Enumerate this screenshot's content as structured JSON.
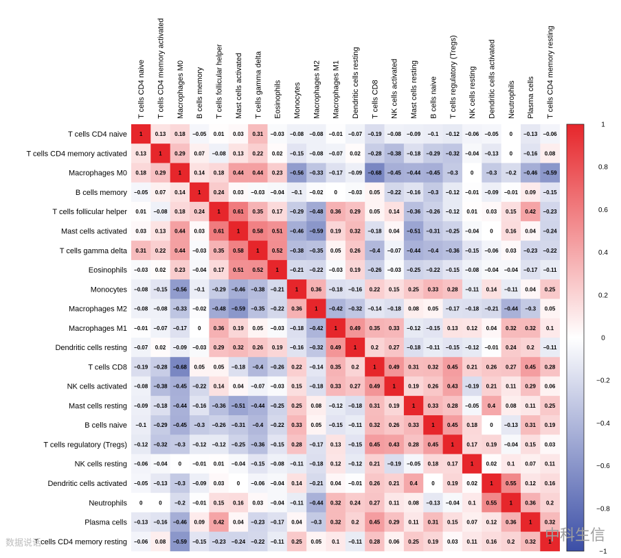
{
  "chart_data": {
    "type": "heatmap",
    "title": "",
    "row_labels": [
      "T cells CD4 naive",
      "T cells CD4 memory activated",
      "Macrophages M0",
      "B cells memory",
      "T cells follicular helper",
      "Mast cells activated",
      "T cells gamma delta",
      "Eosinophils",
      "Monocytes",
      "Macrophages M2",
      "Macrophages M1",
      "Dendritic cells resting",
      "T cells CD8",
      "NK cells activated",
      "Mast cells resting",
      "B cells naive",
      "T cells regulatory (Tregs)",
      "NK cells resting",
      "Dendritic cells activated",
      "Neutrophils",
      "Plasma cells",
      "T cells CD4 memory resting"
    ],
    "column_labels": [
      "T cells CD4 naive",
      "T cells CD4 memory activated",
      "Macrophages M0",
      "B cells memory",
      "T cells follicular helper",
      "Mast cells activated",
      "T cells gamma delta",
      "Eosinophils",
      "Monocytes",
      "Macrophages M2",
      "Macrophages M1",
      "Dendritic cells resting",
      "T cells CD8",
      "NK cells activated",
      "Mast cells resting",
      "B cells naive",
      "T cells regulatory (Tregs)",
      "NK cells resting",
      "Dendritic cells activated",
      "Neutrophils",
      "Plasma cells",
      "T cells CD4 memory resting"
    ],
    "values": [
      [
        1,
        0.13,
        0.18,
        -0.05,
        0.01,
        0.03,
        0.31,
        -0.03,
        -0.08,
        -0.08,
        -0.01,
        -0.07,
        -0.19,
        -0.08,
        -0.09,
        -0.1,
        -0.12,
        -0.06,
        -0.05,
        0,
        -0.13,
        -0.06
      ],
      [
        0.13,
        1,
        0.29,
        0.07,
        -0.08,
        0.13,
        0.22,
        0.02,
        -0.15,
        -0.08,
        -0.07,
        0.02,
        -0.28,
        -0.38,
        -0.18,
        -0.29,
        -0.32,
        -0.04,
        -0.13,
        0,
        -0.16,
        0.08
      ],
      [
        0.18,
        0.29,
        1,
        0.14,
        0.18,
        0.44,
        0.44,
        0.23,
        -0.56,
        -0.33,
        -0.17,
        -0.09,
        -0.68,
        -0.45,
        -0.44,
        -0.45,
        -0.3,
        0,
        -0.3,
        -0.2,
        -0.46,
        -0.59
      ],
      [
        -0.05,
        0.07,
        0.14,
        1,
        0.24,
        0.03,
        -0.03,
        -0.04,
        -0.1,
        -0.02,
        0,
        -0.03,
        0.05,
        -0.22,
        -0.16,
        -0.3,
        -0.12,
        -0.01,
        -0.09,
        -0.01,
        0.09,
        -0.15
      ],
      [
        0.01,
        -0.08,
        0.18,
        0.24,
        1,
        0.61,
        0.35,
        0.17,
        -0.29,
        -0.48,
        0.36,
        0.29,
        0.05,
        0.14,
        -0.36,
        -0.26,
        -0.12,
        0.01,
        0.03,
        0.15,
        0.42,
        -0.23
      ],
      [
        0.03,
        0.13,
        0.44,
        0.03,
        0.61,
        1,
        0.58,
        0.51,
        -0.46,
        -0.59,
        0.19,
        0.32,
        -0.18,
        0.04,
        -0.51,
        -0.31,
        -0.25,
        -0.04,
        0,
        0.16,
        0.04,
        -0.24
      ],
      [
        0.31,
        0.22,
        0.44,
        -0.03,
        0.35,
        0.58,
        1,
        0.52,
        -0.38,
        -0.35,
        0.05,
        0.26,
        -0.4,
        -0.07,
        -0.44,
        -0.4,
        -0.36,
        -0.15,
        -0.06,
        0.03,
        -0.23,
        -0.22
      ],
      [
        -0.03,
        0.02,
        0.23,
        -0.04,
        0.17,
        0.51,
        0.52,
        1,
        -0.21,
        -0.22,
        -0.03,
        0.19,
        -0.26,
        -0.03,
        -0.25,
        -0.22,
        -0.15,
        -0.08,
        -0.04,
        -0.04,
        -0.17,
        -0.11
      ],
      [
        -0.08,
        -0.15,
        -0.56,
        -0.1,
        -0.29,
        -0.46,
        -0.38,
        -0.21,
        1,
        0.36,
        -0.18,
        -0.16,
        0.22,
        0.15,
        0.25,
        0.33,
        0.28,
        -0.11,
        0.14,
        -0.11,
        0.04,
        0.25
      ],
      [
        -0.08,
        -0.08,
        -0.33,
        -0.02,
        -0.48,
        -0.59,
        -0.35,
        -0.22,
        0.36,
        1,
        -0.42,
        -0.32,
        -0.14,
        -0.18,
        0.08,
        0.05,
        -0.17,
        -0.18,
        -0.21,
        -0.44,
        -0.3,
        0.05
      ],
      [
        -0.01,
        -0.07,
        -0.17,
        0,
        0.36,
        0.19,
        0.05,
        -0.03,
        -0.18,
        -0.42,
        1,
        0.49,
        0.35,
        0.33,
        -0.12,
        -0.15,
        0.13,
        0.12,
        0.04,
        0.32,
        0.32,
        0.1
      ],
      [
        -0.07,
        0.02,
        -0.09,
        -0.03,
        0.29,
        0.32,
        0.26,
        0.19,
        -0.16,
        -0.32,
        0.49,
        1,
        0.2,
        0.27,
        -0.18,
        -0.11,
        -0.15,
        -0.12,
        -0.01,
        0.24,
        0.2,
        -0.11
      ],
      [
        -0.19,
        -0.28,
        -0.68,
        0.05,
        0.05,
        -0.18,
        -0.4,
        -0.26,
        0.22,
        -0.14,
        0.35,
        0.2,
        1,
        0.49,
        0.31,
        0.32,
        0.45,
        0.21,
        0.26,
        0.27,
        0.45,
        0.28
      ],
      [
        -0.08,
        -0.38,
        -0.45,
        -0.22,
        0.14,
        0.04,
        -0.07,
        -0.03,
        0.15,
        -0.18,
        0.33,
        0.27,
        0.49,
        1,
        0.19,
        0.26,
        0.43,
        -0.19,
        0.21,
        0.11,
        0.29,
        0.06
      ],
      [
        -0.09,
        -0.18,
        -0.44,
        -0.16,
        -0.36,
        -0.51,
        -0.44,
        -0.25,
        0.25,
        0.08,
        -0.12,
        -0.18,
        0.31,
        0.19,
        1,
        0.33,
        0.28,
        -0.05,
        0.4,
        0.08,
        0.11,
        0.25
      ],
      [
        -0.1,
        -0.29,
        -0.45,
        -0.3,
        -0.26,
        -0.31,
        -0.4,
        -0.22,
        0.33,
        0.05,
        -0.15,
        -0.11,
        0.32,
        0.26,
        0.33,
        1,
        0.45,
        0.18,
        0,
        -0.13,
        0.31,
        0.19
      ],
      [
        -0.12,
        -0.32,
        -0.3,
        -0.12,
        -0.12,
        -0.25,
        -0.36,
        -0.15,
        0.28,
        -0.17,
        0.13,
        -0.15,
        0.45,
        0.43,
        0.28,
        0.45,
        1,
        0.17,
        0.19,
        -0.04,
        0.15,
        0.03
      ],
      [
        -0.06,
        -0.04,
        0,
        -0.01,
        0.01,
        -0.04,
        -0.15,
        -0.08,
        -0.11,
        -0.18,
        0.12,
        -0.12,
        0.21,
        -0.19,
        -0.05,
        0.18,
        0.17,
        1,
        0.02,
        0.1,
        0.07,
        0.11
      ],
      [
        -0.05,
        -0.13,
        -0.3,
        -0.09,
        0.03,
        0,
        -0.06,
        -0.04,
        0.14,
        -0.21,
        0.04,
        -0.01,
        0.26,
        0.21,
        0.4,
        0,
        0.19,
        0.02,
        1,
        0.55,
        0.12,
        0.16
      ],
      [
        0,
        0,
        -0.2,
        -0.01,
        0.15,
        0.16,
        0.03,
        -0.04,
        -0.11,
        -0.44,
        0.32,
        0.24,
        0.27,
        0.11,
        0.08,
        -0.13,
        -0.04,
        0.1,
        0.55,
        1,
        0.36,
        0.2
      ],
      [
        -0.13,
        -0.16,
        -0.46,
        0.09,
        0.42,
        0.04,
        -0.23,
        -0.17,
        0.04,
        -0.3,
        0.32,
        0.2,
        0.45,
        0.29,
        0.11,
        0.31,
        0.15,
        0.07,
        0.12,
        0.36,
        1,
        0.32
      ],
      [
        -0.06,
        0.08,
        -0.59,
        -0.15,
        -0.23,
        -0.24,
        -0.22,
        -0.11,
        0.25,
        0.05,
        0.1,
        -0.11,
        0.28,
        0.06,
        0.25,
        0.19,
        0.03,
        0.11,
        0.16,
        0.2,
        0.32,
        1
      ]
    ],
    "colorbar": {
      "range": [
        -1,
        1
      ],
      "ticks": [
        "1",
        "0.8",
        "0.6",
        "0.4",
        "0.2",
        "0",
        "−0.2",
        "−0.4",
        "−0.6",
        "−0.8",
        "−1"
      ],
      "colors": {
        "low": "#3b4ea6",
        "mid": "#ffffff",
        "high": "#e6262b"
      }
    }
  },
  "watermarks": {
    "left": "数据说话",
    "right": "中科生信"
  }
}
